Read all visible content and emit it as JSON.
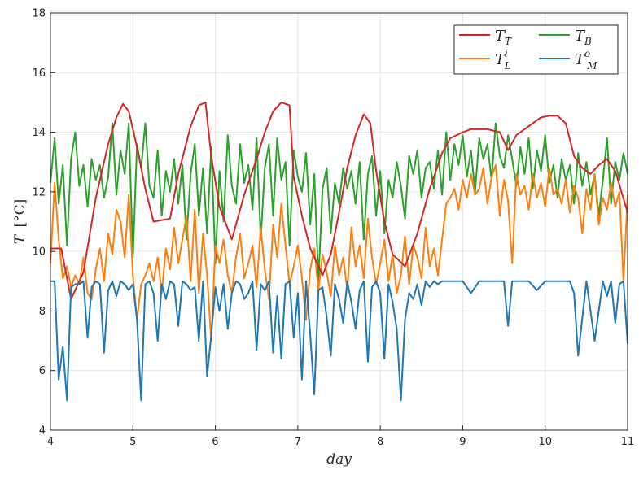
{
  "chart_data": {
    "type": "line",
    "title": "",
    "xlabel": "day",
    "ylabel": {
      "symbol": "T",
      "unit": "[°C]"
    },
    "xlim": [
      4,
      11
    ],
    "ylim": [
      4,
      18
    ],
    "xticks": [
      "4",
      "5",
      "6",
      "7",
      "8",
      "9",
      "10",
      "11"
    ],
    "yticks": [
      "4",
      "6",
      "8",
      "10",
      "12",
      "14",
      "16",
      "18"
    ],
    "grid": true,
    "legend_position": "top-right",
    "series": [
      {
        "name": "T_T",
        "label_main": "T",
        "label_sub": "T",
        "label_sup": "",
        "color": "#d62728",
        "x": [
          4.0,
          4.13,
          4.25,
          4.4,
          4.55,
          4.7,
          4.8,
          4.88,
          4.95,
          5.05,
          5.15,
          5.25,
          5.45,
          5.55,
          5.7,
          5.8,
          5.88,
          5.95,
          6.05,
          6.2,
          6.35,
          6.5,
          6.6,
          6.7,
          6.8,
          6.9,
          6.95,
          7.05,
          7.15,
          7.3,
          7.4,
          7.5,
          7.6,
          7.7,
          7.8,
          7.88,
          7.95,
          8.05,
          8.15,
          8.3,
          8.45,
          8.6,
          8.75,
          8.85,
          9.0,
          9.1,
          9.3,
          9.45,
          9.55,
          9.65,
          9.8,
          9.95,
          10.05,
          10.15,
          10.25,
          10.35,
          10.45,
          10.55,
          10.65,
          10.75,
          10.85,
          11.0
        ],
        "y": [
          10.1,
          10.1,
          8.4,
          9.3,
          11.8,
          13.6,
          14.5,
          14.95,
          14.7,
          13.5,
          12.1,
          11.0,
          11.1,
          12.6,
          14.2,
          14.9,
          15.0,
          13.2,
          11.5,
          10.4,
          11.9,
          13.1,
          14.0,
          14.7,
          15.0,
          14.9,
          12.5,
          11.2,
          10.1,
          9.2,
          9.9,
          11.3,
          12.8,
          13.9,
          14.6,
          14.3,
          12.7,
          11.0,
          9.9,
          9.5,
          10.6,
          12.1,
          13.3,
          13.8,
          14.0,
          14.1,
          14.1,
          14.0,
          13.4,
          13.9,
          14.2,
          14.5,
          14.55,
          14.55,
          14.3,
          13.2,
          12.8,
          12.6,
          12.9,
          13.1,
          12.7,
          11.3
        ]
      },
      {
        "name": "T_B",
        "label_main": "T",
        "label_sub": "B",
        "label_sup": "",
        "color": "#2ca02c",
        "x": [
          4.0,
          4.05,
          4.1,
          4.15,
          4.2,
          4.25,
          4.3,
          4.35,
          4.4,
          4.45,
          4.5,
          4.55,
          4.6,
          4.65,
          4.7,
          4.75,
          4.8,
          4.85,
          4.9,
          4.95,
          5.0,
          5.05,
          5.1,
          5.15,
          5.2,
          5.25,
          5.3,
          5.35,
          5.4,
          5.45,
          5.5,
          5.55,
          5.6,
          5.65,
          5.7,
          5.75,
          5.8,
          5.85,
          5.9,
          5.95,
          6.0,
          6.05,
          6.1,
          6.15,
          6.2,
          6.25,
          6.3,
          6.35,
          6.4,
          6.45,
          6.5,
          6.55,
          6.6,
          6.65,
          6.7,
          6.75,
          6.8,
          6.85,
          6.9,
          6.95,
          7.0,
          7.05,
          7.1,
          7.15,
          7.2,
          7.25,
          7.3,
          7.35,
          7.4,
          7.45,
          7.5,
          7.55,
          7.6,
          7.65,
          7.7,
          7.75,
          7.8,
          7.85,
          7.9,
          7.95,
          8.0,
          8.05,
          8.1,
          8.15,
          8.2,
          8.25,
          8.3,
          8.35,
          8.4,
          8.45,
          8.5,
          8.55,
          8.6,
          8.65,
          8.7,
          8.75,
          8.8,
          8.85,
          8.9,
          8.95,
          9.0,
          9.05,
          9.1,
          9.15,
          9.2,
          9.25,
          9.3,
          9.35,
          9.4,
          9.45,
          9.5,
          9.55,
          9.6,
          9.65,
          9.7,
          9.75,
          9.8,
          9.85,
          9.9,
          9.95,
          10.0,
          10.05,
          10.1,
          10.15,
          10.2,
          10.25,
          10.3,
          10.35,
          10.4,
          10.45,
          10.5,
          10.55,
          10.6,
          10.65,
          10.7,
          10.75,
          10.8,
          10.85,
          10.9,
          10.95,
          11.0
        ],
        "y": [
          12.3,
          13.8,
          11.6,
          12.9,
          10.2,
          13.1,
          14.0,
          12.2,
          12.9,
          11.5,
          13.1,
          12.4,
          12.9,
          11.8,
          12.5,
          14.3,
          11.9,
          13.4,
          12.6,
          14.3,
          9.8,
          13.6,
          12.8,
          14.3,
          12.2,
          11.8,
          13.4,
          11.2,
          12.7,
          12.0,
          13.1,
          11.6,
          12.9,
          10.4,
          12.6,
          13.6,
          11.2,
          12.8,
          10.6,
          13.5,
          9.6,
          12.7,
          11.0,
          13.9,
          12.2,
          11.6,
          13.6,
          12.3,
          12.9,
          11.4,
          13.8,
          10.4,
          12.8,
          13.6,
          11.2,
          13.8,
          12.4,
          13.0,
          10.2,
          13.4,
          12.5,
          12.0,
          13.3,
          10.9,
          12.6,
          9.0,
          12.1,
          12.8,
          10.6,
          12.3,
          11.6,
          12.8,
          12.1,
          12.7,
          11.6,
          13.0,
          10.4,
          12.6,
          13.2,
          11.2,
          12.7,
          10.6,
          12.4,
          11.8,
          13.0,
          12.2,
          11.1,
          13.2,
          12.6,
          13.4,
          11.8,
          12.8,
          13.0,
          12.1,
          13.4,
          11.9,
          14.0,
          12.4,
          13.6,
          12.9,
          13.9,
          12.5,
          13.4,
          12.0,
          13.8,
          13.1,
          13.6,
          12.4,
          14.3,
          13.2,
          12.8,
          13.9,
          13.1,
          12.2,
          13.5,
          12.6,
          13.8,
          12.1,
          13.4,
          12.7,
          13.9,
          12.3,
          12.9,
          11.8,
          13.1,
          12.4,
          12.9,
          11.6,
          13.3,
          12.2,
          13.0,
          11.9,
          12.6,
          11.2,
          12.4,
          13.8,
          11.6,
          13.0,
          12.4,
          13.3,
          12.6
        ]
      },
      {
        "name": "T_L^i",
        "label_main": "T",
        "label_sub": "L",
        "label_sup": "i",
        "color": "#ff7f0e",
        "x": [
          4.0,
          4.05,
          4.1,
          4.15,
          4.2,
          4.25,
          4.3,
          4.35,
          4.4,
          4.45,
          4.5,
          4.55,
          4.6,
          4.65,
          4.7,
          4.75,
          4.8,
          4.85,
          4.9,
          4.95,
          5.0,
          5.05,
          5.1,
          5.15,
          5.2,
          5.25,
          5.3,
          5.35,
          5.4,
          5.45,
          5.5,
          5.55,
          5.6,
          5.65,
          5.7,
          5.75,
          5.8,
          5.85,
          5.9,
          5.95,
          6.0,
          6.05,
          6.1,
          6.15,
          6.2,
          6.25,
          6.3,
          6.35,
          6.4,
          6.45,
          6.5,
          6.55,
          6.6,
          6.65,
          6.7,
          6.75,
          6.8,
          6.85,
          6.9,
          6.95,
          7.0,
          7.05,
          7.1,
          7.15,
          7.2,
          7.25,
          7.3,
          7.35,
          7.4,
          7.45,
          7.5,
          7.55,
          7.6,
          7.65,
          7.7,
          7.75,
          7.8,
          7.85,
          7.9,
          7.95,
          8.0,
          8.05,
          8.1,
          8.15,
          8.2,
          8.25,
          8.3,
          8.35,
          8.4,
          8.45,
          8.5,
          8.55,
          8.6,
          8.65,
          8.7,
          8.75,
          8.8,
          8.85,
          8.9,
          8.95,
          9.0,
          9.05,
          9.1,
          9.15,
          9.2,
          9.25,
          9.3,
          9.35,
          9.4,
          9.45,
          9.5,
          9.55,
          9.6,
          9.65,
          9.7,
          9.75,
          9.8,
          9.85,
          9.9,
          9.95,
          10.0,
          10.05,
          10.1,
          10.15,
          10.2,
          10.25,
          10.3,
          10.35,
          10.4,
          10.45,
          10.5,
          10.55,
          10.6,
          10.65,
          10.7,
          10.75,
          10.8,
          10.85,
          10.9,
          10.95,
          11.0
        ],
        "y": [
          9.6,
          12.3,
          10.4,
          9.1,
          9.5,
          8.8,
          9.2,
          8.9,
          9.8,
          8.6,
          8.4,
          9.4,
          10.1,
          9.0,
          10.6,
          9.9,
          11.4,
          11.0,
          9.8,
          11.9,
          9.2,
          7.7,
          8.9,
          9.2,
          9.6,
          9.0,
          9.8,
          8.6,
          10.1,
          9.4,
          10.8,
          9.6,
          10.4,
          11.2,
          9.0,
          11.4,
          8.6,
          10.6,
          9.2,
          7.0,
          10.2,
          9.6,
          10.4,
          9.2,
          8.6,
          9.8,
          10.6,
          9.1,
          9.6,
          10.2,
          8.8,
          10.8,
          9.4,
          8.4,
          10.9,
          9.8,
          11.6,
          10.2,
          8.9,
          9.5,
          10.2,
          9.1,
          7.7,
          9.4,
          10.1,
          8.7,
          9.9,
          9.3,
          8.5,
          10.2,
          9.2,
          9.8,
          8.7,
          10.8,
          9.5,
          10.2,
          9.1,
          11.1,
          9.8,
          8.9,
          9.6,
          10.4,
          9.0,
          9.9,
          8.6,
          9.2,
          10.5,
          8.9,
          10.2,
          9.8,
          9.1,
          10.8,
          9.5,
          10.1,
          9.2,
          10.4,
          11.6,
          11.8,
          12.1,
          11.4,
          12.4,
          11.8,
          12.6,
          11.9,
          12.1,
          12.8,
          11.6,
          12.5,
          12.9,
          11.2,
          12.4,
          11.7,
          9.6,
          12.6,
          11.9,
          12.2,
          11.4,
          12.6,
          11.8,
          12.3,
          11.5,
          12.8,
          11.9,
          12.1,
          11.6,
          12.4,
          11.3,
          12.2,
          11.8,
          10.6,
          12.1,
          11.4,
          12.6,
          10.9,
          11.8,
          11.4,
          12.3,
          11.5,
          12.0,
          9.0,
          11.9
        ]
      },
      {
        "name": "T_M^o",
        "label_main": "T",
        "label_sub": "M",
        "label_sup": "o",
        "color": "#1f77b4",
        "x": [
          4.0,
          4.05,
          4.1,
          4.15,
          4.2,
          4.25,
          4.3,
          4.35,
          4.4,
          4.45,
          4.5,
          4.55,
          4.6,
          4.65,
          4.7,
          4.75,
          4.8,
          4.85,
          4.9,
          4.95,
          5.0,
          5.05,
          5.1,
          5.15,
          5.2,
          5.25,
          5.3,
          5.35,
          5.4,
          5.45,
          5.5,
          5.55,
          5.6,
          5.65,
          5.7,
          5.75,
          5.8,
          5.85,
          5.9,
          5.95,
          6.0,
          6.05,
          6.1,
          6.15,
          6.2,
          6.25,
          6.3,
          6.35,
          6.4,
          6.45,
          6.5,
          6.55,
          6.6,
          6.65,
          6.7,
          6.75,
          6.8,
          6.85,
          6.9,
          6.95,
          7.0,
          7.05,
          7.1,
          7.15,
          7.2,
          7.25,
          7.3,
          7.35,
          7.4,
          7.45,
          7.5,
          7.55,
          7.6,
          7.65,
          7.7,
          7.75,
          7.8,
          7.85,
          7.9,
          7.95,
          8.0,
          8.05,
          8.1,
          8.15,
          8.2,
          8.25,
          8.3,
          8.35,
          8.4,
          8.45,
          8.5,
          8.55,
          8.6,
          8.65,
          8.7,
          8.75,
          8.8,
          8.85,
          8.9,
          8.95,
          9.0,
          9.1,
          9.2,
          9.3,
          9.4,
          9.5,
          9.55,
          9.6,
          9.7,
          9.8,
          9.9,
          10.0,
          10.1,
          10.2,
          10.3,
          10.35,
          10.4,
          10.5,
          10.6,
          10.7,
          10.75,
          10.8,
          10.85,
          10.9,
          10.95,
          11.0
        ],
        "y": [
          9.0,
          9.0,
          5.7,
          6.8,
          5.0,
          8.8,
          8.9,
          8.9,
          9.0,
          7.1,
          8.8,
          9.0,
          8.9,
          6.6,
          8.7,
          9.0,
          8.5,
          9.0,
          8.9,
          8.7,
          8.9,
          7.7,
          5.0,
          8.9,
          9.0,
          8.6,
          7.0,
          8.9,
          8.4,
          9.0,
          8.9,
          7.5,
          9.0,
          8.9,
          8.7,
          8.8,
          7.0,
          9.0,
          5.8,
          7.2,
          8.8,
          8.0,
          8.9,
          7.4,
          8.6,
          9.0,
          8.9,
          8.4,
          8.6,
          9.0,
          6.7,
          8.9,
          8.7,
          9.0,
          6.6,
          8.5,
          6.4,
          8.9,
          9.0,
          7.1,
          8.6,
          5.7,
          9.0,
          7.2,
          5.2,
          8.7,
          8.8,
          7.8,
          6.5,
          8.9,
          8.4,
          7.6,
          9.0,
          8.3,
          7.4,
          8.7,
          9.0,
          6.3,
          8.8,
          9.0,
          8.6,
          6.4,
          8.9,
          8.3,
          7.4,
          5.0,
          7.7,
          8.6,
          8.4,
          8.9,
          8.2,
          9.0,
          8.8,
          9.0,
          8.9,
          9.0,
          9.0,
          9.0,
          9.0,
          9.0,
          9.0,
          8.6,
          9.0,
          9.0,
          9.0,
          9.0,
          7.5,
          9.0,
          9.0,
          9.0,
          8.7,
          9.0,
          9.0,
          9.0,
          9.0,
          8.6,
          6.5,
          9.0,
          7.0,
          9.0,
          8.5,
          9.0,
          7.6,
          8.9,
          9.0,
          6.9
        ]
      }
    ]
  }
}
